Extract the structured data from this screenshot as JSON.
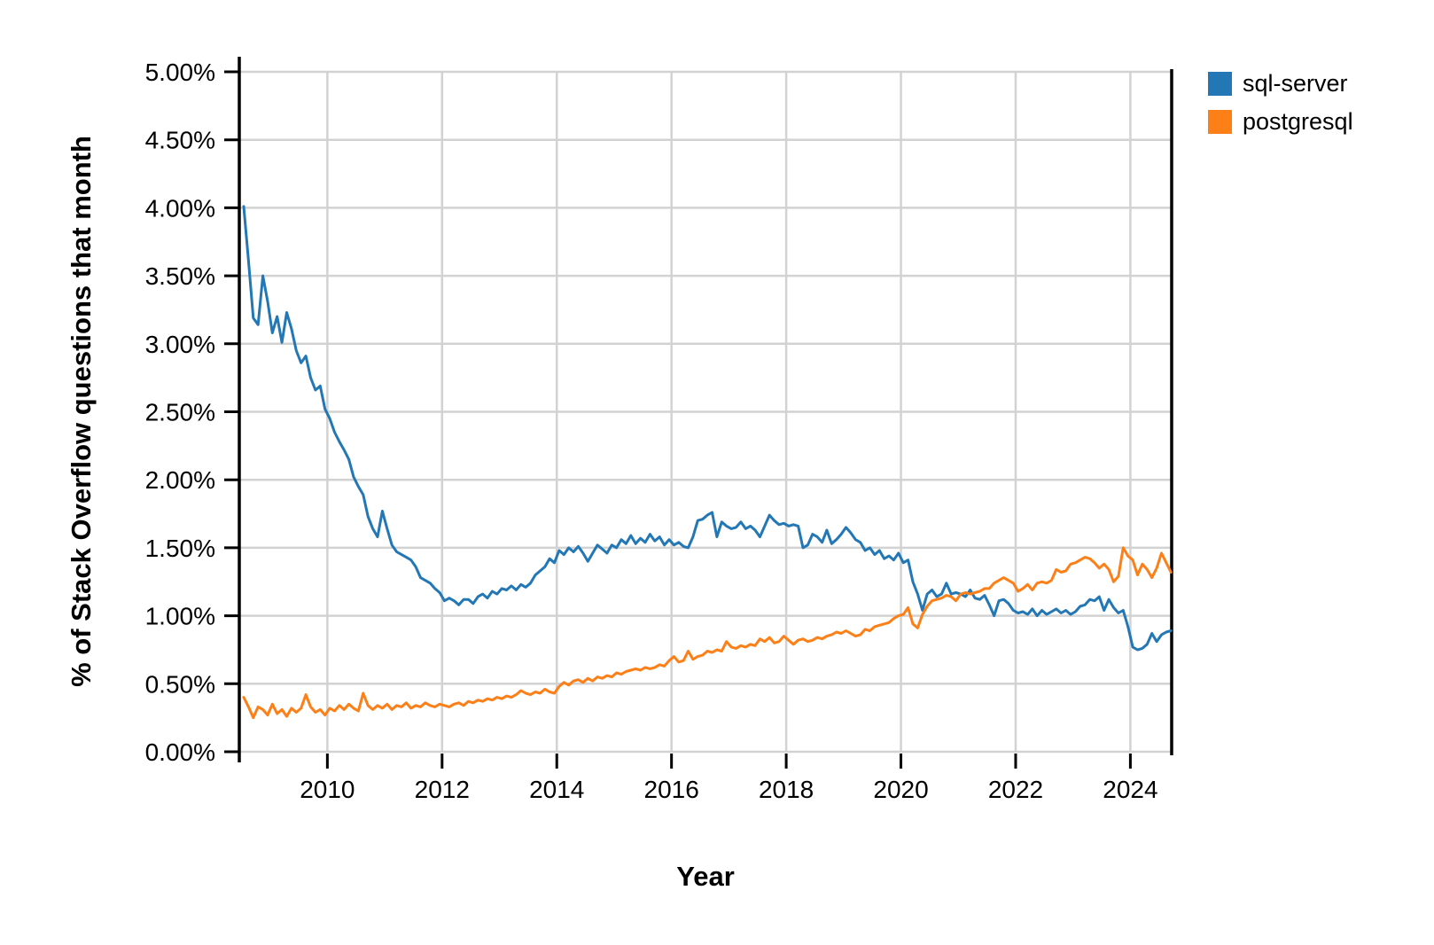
{
  "chart_data": {
    "type": "line",
    "title": "",
    "xlabel": "Year",
    "ylabel": "% of Stack Overflow questions that month",
    "x_unit": "month",
    "x_start_month": "2008-07",
    "x_end_month": "2024-09",
    "x_domain_years": [
      2008.48,
      2024.72
    ],
    "ylim": [
      0,
      5
    ],
    "grid": true,
    "legend_position": "top-right",
    "y_tick_values": [
      0,
      0.5,
      1,
      1.5,
      2,
      2.5,
      3,
      3.5,
      4,
      4.5,
      5
    ],
    "y_tick_labels": [
      "0.00%",
      "0.50%",
      "1.00%",
      "1.50%",
      "2.00%",
      "2.50%",
      "3.00%",
      "3.50%",
      "4.00%",
      "4.50%",
      "5.00%"
    ],
    "x_tick_years": [
      2010,
      2012,
      2014,
      2016,
      2018,
      2020,
      2022,
      2024
    ],
    "x_tick_labels": [
      "2010",
      "2012",
      "2014",
      "2016",
      "2018",
      "2020",
      "2022",
      "2024"
    ],
    "colors": {
      "grid": "#d2d2d2",
      "axis": "#000000",
      "text": "#000000",
      "background": "#ffffff"
    },
    "series": [
      {
        "name": "sql-server",
        "color": "#2277b4",
        "values": [
          4.01,
          3.61,
          3.19,
          3.14,
          3.5,
          3.31,
          3.08,
          3.2,
          3.01,
          3.23,
          3.11,
          2.95,
          2.86,
          2.91,
          2.75,
          2.66,
          2.69,
          2.52,
          2.45,
          2.35,
          2.28,
          2.22,
          2.15,
          2.02,
          1.95,
          1.89,
          1.73,
          1.64,
          1.58,
          1.77,
          1.64,
          1.52,
          1.47,
          1.45,
          1.43,
          1.41,
          1.36,
          1.28,
          1.26,
          1.24,
          1.2,
          1.17,
          1.11,
          1.13,
          1.11,
          1.08,
          1.12,
          1.12,
          1.09,
          1.14,
          1.16,
          1.13,
          1.18,
          1.16,
          1.2,
          1.19,
          1.22,
          1.19,
          1.23,
          1.21,
          1.24,
          1.3,
          1.33,
          1.36,
          1.42,
          1.39,
          1.48,
          1.45,
          1.5,
          1.47,
          1.51,
          1.46,
          1.4,
          1.46,
          1.52,
          1.49,
          1.46,
          1.52,
          1.5,
          1.56,
          1.53,
          1.59,
          1.53,
          1.57,
          1.54,
          1.6,
          1.55,
          1.58,
          1.52,
          1.56,
          1.52,
          1.54,
          1.51,
          1.5,
          1.58,
          1.7,
          1.71,
          1.74,
          1.76,
          1.58,
          1.69,
          1.66,
          1.64,
          1.65,
          1.69,
          1.64,
          1.66,
          1.63,
          1.58,
          1.66,
          1.74,
          1.7,
          1.67,
          1.68,
          1.66,
          1.67,
          1.66,
          1.5,
          1.52,
          1.6,
          1.58,
          1.54,
          1.63,
          1.53,
          1.56,
          1.6,
          1.65,
          1.61,
          1.56,
          1.54,
          1.48,
          1.5,
          1.45,
          1.48,
          1.42,
          1.44,
          1.41,
          1.46,
          1.39,
          1.41,
          1.25,
          1.16,
          1.04,
          1.16,
          1.19,
          1.14,
          1.16,
          1.24,
          1.16,
          1.17,
          1.16,
          1.14,
          1.19,
          1.13,
          1.12,
          1.15,
          1.08,
          1.0,
          1.11,
          1.12,
          1.09,
          1.04,
          1.02,
          1.03,
          1.01,
          1.05,
          1.0,
          1.04,
          1.01,
          1.03,
          1.05,
          1.02,
          1.04,
          1.01,
          1.03,
          1.07,
          1.08,
          1.12,
          1.11,
          1.14,
          1.04,
          1.12,
          1.06,
          1.02,
          1.04,
          0.92,
          0.77,
          0.75,
          0.76,
          0.79,
          0.87,
          0.81,
          0.86,
          0.88,
          0.89
        ]
      },
      {
        "name": "postgresql",
        "color": "#fd7f17",
        "values": [
          0.4,
          0.33,
          0.25,
          0.33,
          0.31,
          0.27,
          0.35,
          0.28,
          0.31,
          0.26,
          0.32,
          0.29,
          0.32,
          0.42,
          0.33,
          0.29,
          0.31,
          0.27,
          0.32,
          0.3,
          0.34,
          0.31,
          0.35,
          0.32,
          0.3,
          0.43,
          0.34,
          0.31,
          0.34,
          0.32,
          0.35,
          0.31,
          0.34,
          0.33,
          0.36,
          0.32,
          0.34,
          0.33,
          0.36,
          0.34,
          0.33,
          0.35,
          0.34,
          0.33,
          0.35,
          0.36,
          0.34,
          0.37,
          0.36,
          0.38,
          0.37,
          0.39,
          0.38,
          0.4,
          0.39,
          0.41,
          0.4,
          0.42,
          0.45,
          0.43,
          0.42,
          0.44,
          0.43,
          0.46,
          0.44,
          0.43,
          0.48,
          0.51,
          0.49,
          0.52,
          0.53,
          0.51,
          0.54,
          0.52,
          0.55,
          0.54,
          0.56,
          0.55,
          0.58,
          0.57,
          0.59,
          0.6,
          0.61,
          0.6,
          0.62,
          0.61,
          0.62,
          0.64,
          0.63,
          0.67,
          0.7,
          0.66,
          0.67,
          0.74,
          0.68,
          0.7,
          0.71,
          0.74,
          0.73,
          0.75,
          0.74,
          0.81,
          0.77,
          0.76,
          0.78,
          0.77,
          0.79,
          0.78,
          0.83,
          0.81,
          0.84,
          0.8,
          0.81,
          0.85,
          0.82,
          0.79,
          0.82,
          0.83,
          0.81,
          0.82,
          0.84,
          0.83,
          0.85,
          0.86,
          0.88,
          0.87,
          0.89,
          0.87,
          0.85,
          0.86,
          0.9,
          0.89,
          0.92,
          0.93,
          0.94,
          0.95,
          0.98,
          1.0,
          1.01,
          1.06,
          0.94,
          0.91,
          1.01,
          1.07,
          1.11,
          1.12,
          1.13,
          1.15,
          1.14,
          1.11,
          1.16,
          1.17,
          1.16,
          1.17,
          1.18,
          1.2,
          1.2,
          1.24,
          1.26,
          1.28,
          1.26,
          1.24,
          1.18,
          1.2,
          1.23,
          1.19,
          1.24,
          1.25,
          1.24,
          1.26,
          1.34,
          1.32,
          1.33,
          1.38,
          1.39,
          1.41,
          1.43,
          1.42,
          1.39,
          1.35,
          1.38,
          1.34,
          1.25,
          1.29,
          1.5,
          1.44,
          1.41,
          1.3,
          1.38,
          1.34,
          1.28,
          1.35,
          1.46,
          1.39,
          1.32
        ]
      }
    ]
  }
}
